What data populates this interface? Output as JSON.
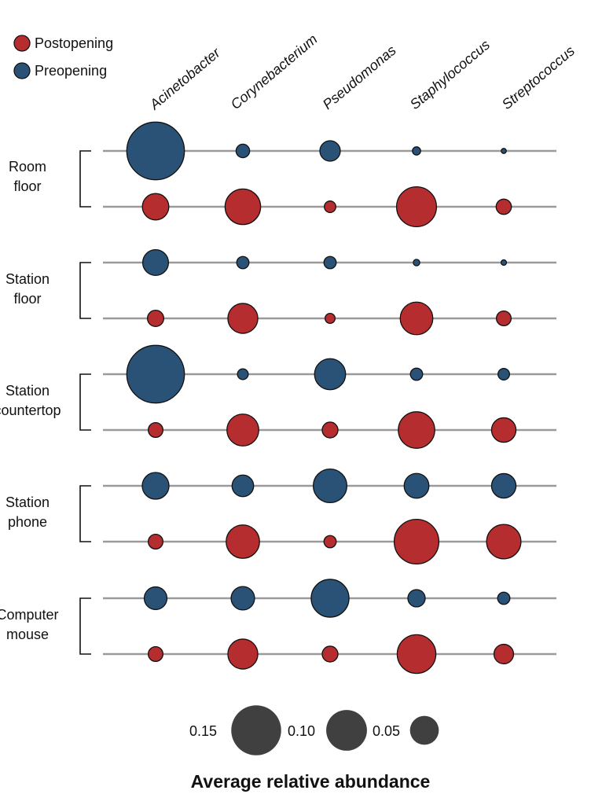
{
  "chart_data": {
    "type": "bubble",
    "title": "",
    "xlabel": "Average relative abundance",
    "categories": [
      "Acinetobacter",
      "Corynebacterium",
      "Pseudomonas",
      "Staphylococcus",
      "Streptococcus"
    ],
    "colors": {
      "Postopening": "#b52d2f",
      "Preopening": "#2a5276"
    },
    "legend": {
      "position": "top-left",
      "entries": [
        {
          "name": "Postopening",
          "color": "#b52d2f"
        },
        {
          "name": "Preopening",
          "color": "#2a5276"
        }
      ]
    },
    "size_legend": {
      "values": [
        0.15,
        0.1,
        0.05
      ],
      "labels": [
        "0.15",
        "0.10",
        "0.05"
      ]
    },
    "groups": [
      {
        "label_lines": [
          "Room",
          "floor"
        ],
        "series": [
          {
            "name": "Preopening",
            "values": [
              0.2,
              0.011,
              0.025,
              0.004,
              0.0015
            ]
          },
          {
            "name": "Postopening",
            "values": [
              0.042,
              0.076,
              0.008,
              0.096,
              0.014
            ]
          }
        ]
      },
      {
        "label_lines": [
          "Station",
          "floor"
        ],
        "series": [
          {
            "name": "Preopening",
            "values": [
              0.04,
              0.009,
              0.009,
              0.0025,
              0.0018
            ]
          },
          {
            "name": "Postopening",
            "values": [
              0.016,
              0.054,
              0.006,
              0.064,
              0.013
            ]
          }
        ]
      },
      {
        "label_lines": [
          "Station",
          "countertop"
        ],
        "series": [
          {
            "name": "Preopening",
            "values": [
              0.2,
              0.007,
              0.058,
              0.009,
              0.008
            ]
          },
          {
            "name": "Postopening",
            "values": [
              0.013,
              0.061,
              0.015,
              0.08,
              0.036
            ]
          }
        ]
      },
      {
        "label_lines": [
          "Station",
          "phone"
        ],
        "series": [
          {
            "name": "Preopening",
            "values": [
              0.043,
              0.028,
              0.068,
              0.037,
              0.036
            ]
          },
          {
            "name": "Postopening",
            "values": [
              0.013,
              0.067,
              0.009,
              0.12,
              0.071
            ]
          }
        ]
      },
      {
        "label_lines": [
          "Computer",
          "mouse"
        ],
        "series": [
          {
            "name": "Preopening",
            "values": [
              0.031,
              0.033,
              0.086,
              0.018,
              0.009
            ]
          },
          {
            "name": "Postopening",
            "values": [
              0.013,
              0.054,
              0.015,
              0.09,
              0.023
            ]
          }
        ]
      }
    ]
  }
}
